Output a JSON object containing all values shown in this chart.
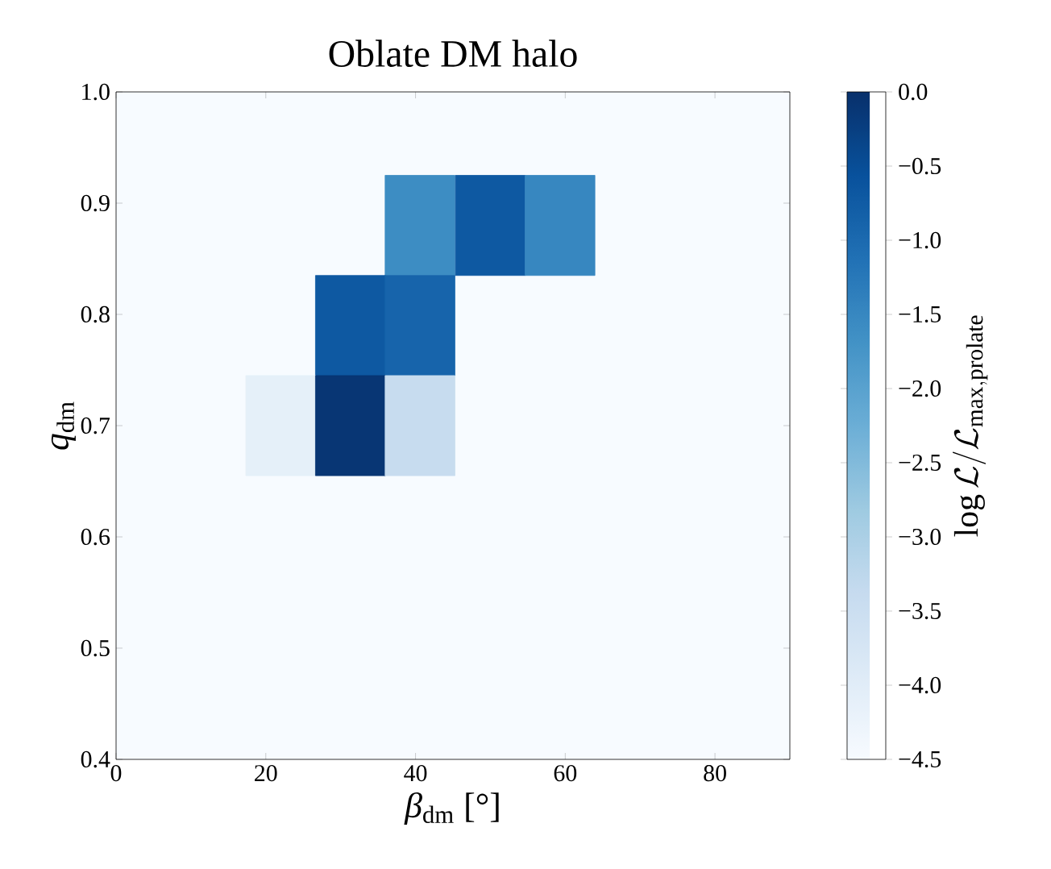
{
  "chart_data": {
    "type": "heatmap",
    "title": "Oblate DM halo",
    "xlabel": "*β*$_{dm}$ [°]",
    "ylabel": "*q*$_{dm}$",
    "clabel": "\\log\\mathcal{L}/\\mathcal{L}_{\\rm max,prolate}",
    "x": [
      22,
      31.3,
      40.6,
      50,
      59.3
    ],
    "y": [
      0.88,
      0.79,
      0.7
    ],
    "cells": [
      [
        null,
        null,
        -1.6,
        -0.7,
        -1.5
      ],
      [
        null,
        -0.7,
        -0.9,
        null,
        null
      ],
      [
        -4.1,
        -0.1,
        -3.4,
        null,
        null
      ]
    ],
    "xlim": [
      0,
      90
    ],
    "ylim": [
      0.4,
      1.0
    ],
    "xticks": [
      0,
      20,
      40,
      60,
      80
    ],
    "yticks": [
      0.4,
      0.5,
      0.6,
      0.7,
      0.8,
      0.9,
      {
        "value": 1.0,
        "label": "1.0"
      }
    ],
    "clim": [
      -4.5,
      0
    ],
    "cticks": [
      {
        "value": 0,
        "label": "0.0"
      },
      {
        "value": -0.5,
        "label": "−0.5"
      },
      {
        "value": -1.0,
        "label": "−1.0"
      },
      {
        "value": -1.5,
        "label": "−1.5"
      },
      {
        "value": -2.0,
        "label": "−2.0"
      },
      {
        "value": -2.5,
        "label": "−2.5"
      },
      {
        "value": -3.0,
        "label": "−3.0"
      },
      {
        "value": -3.5,
        "label": "−3.5"
      },
      {
        "value": -4.0,
        "label": "−4.0"
      },
      {
        "value": -4.5,
        "label": "−4.5"
      }
    ]
  }
}
